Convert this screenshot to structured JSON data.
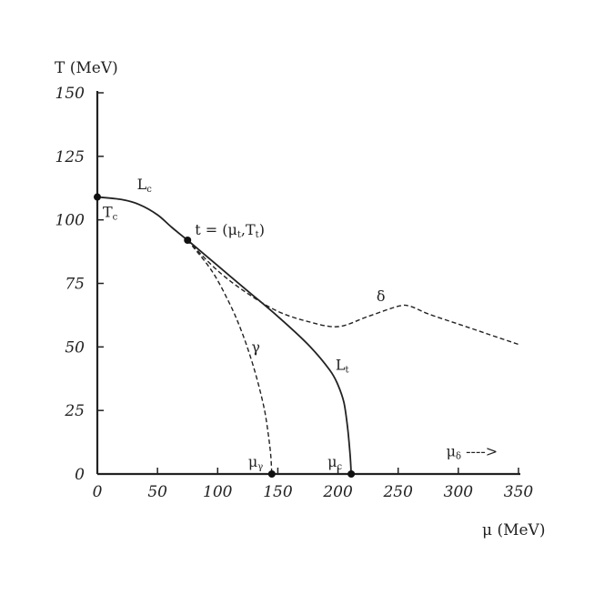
{
  "chart_data": {
    "type": "line",
    "ylabel": "T (MeV)",
    "xlabel": "μ (MeV)",
    "xlim": [
      0,
      350
    ],
    "ylim": [
      0,
      150
    ],
    "x_ticks": [
      "0",
      "50",
      "100",
      "150",
      "200",
      "250",
      "300",
      "350"
    ],
    "y_ticks": [
      "0",
      "25",
      "50",
      "75",
      "100",
      "125",
      "150"
    ],
    "x_tick_values": [
      0,
      50,
      100,
      150,
      200,
      250,
      300,
      350
    ],
    "y_tick_values": [
      0,
      25,
      50,
      75,
      100,
      125,
      150
    ],
    "grid": false,
    "series": [
      {
        "name": "Lc",
        "style": "solid",
        "x": [
          0,
          20,
          35,
          50,
          62,
          75
        ],
        "y": [
          109,
          108,
          106,
          102,
          97,
          92
        ]
      },
      {
        "name": "Lt",
        "style": "solid",
        "x": [
          75,
          100,
          125,
          150,
          175,
          193,
          200,
          205,
          208,
          210,
          211
        ],
        "y": [
          92,
          82,
          72,
          62,
          51,
          41,
          35,
          28,
          18,
          8,
          0
        ]
      },
      {
        "name": "γ",
        "style": "dashed",
        "x": [
          75,
          95,
          110,
          120,
          128,
          134,
          139,
          142,
          144,
          145
        ],
        "y": [
          92,
          80,
          67,
          56,
          45,
          35,
          25,
          16,
          8,
          0
        ]
      },
      {
        "name": "δ",
        "style": "dashed",
        "x": [
          75,
          100,
          125,
          150,
          175,
          200,
          225,
          250,
          260,
          275,
          300,
          325,
          350
        ],
        "y": [
          92,
          80,
          71,
          64,
          60,
          58,
          62,
          66,
          66,
          63,
          59,
          55,
          51
        ]
      }
    ],
    "points": [
      {
        "x": 0,
        "y": 109,
        "label": "Tc"
      },
      {
        "x": 75,
        "y": 92,
        "label": "t = (μt,Tt)"
      },
      {
        "x": 145,
        "y": 0,
        "label": "μγ"
      },
      {
        "x": 211,
        "y": 0,
        "label": "μc"
      }
    ],
    "annotations": [
      {
        "text": "Lc",
        "x": 33,
        "y": 112
      },
      {
        "text": "γ",
        "x": 128,
        "y": 48
      },
      {
        "text": "δ",
        "x": 232,
        "y": 68
      },
      {
        "text": "Lt",
        "x": 198,
        "y": 41
      },
      {
        "text": "μδ ---->",
        "x": 290,
        "y": 7
      }
    ]
  }
}
